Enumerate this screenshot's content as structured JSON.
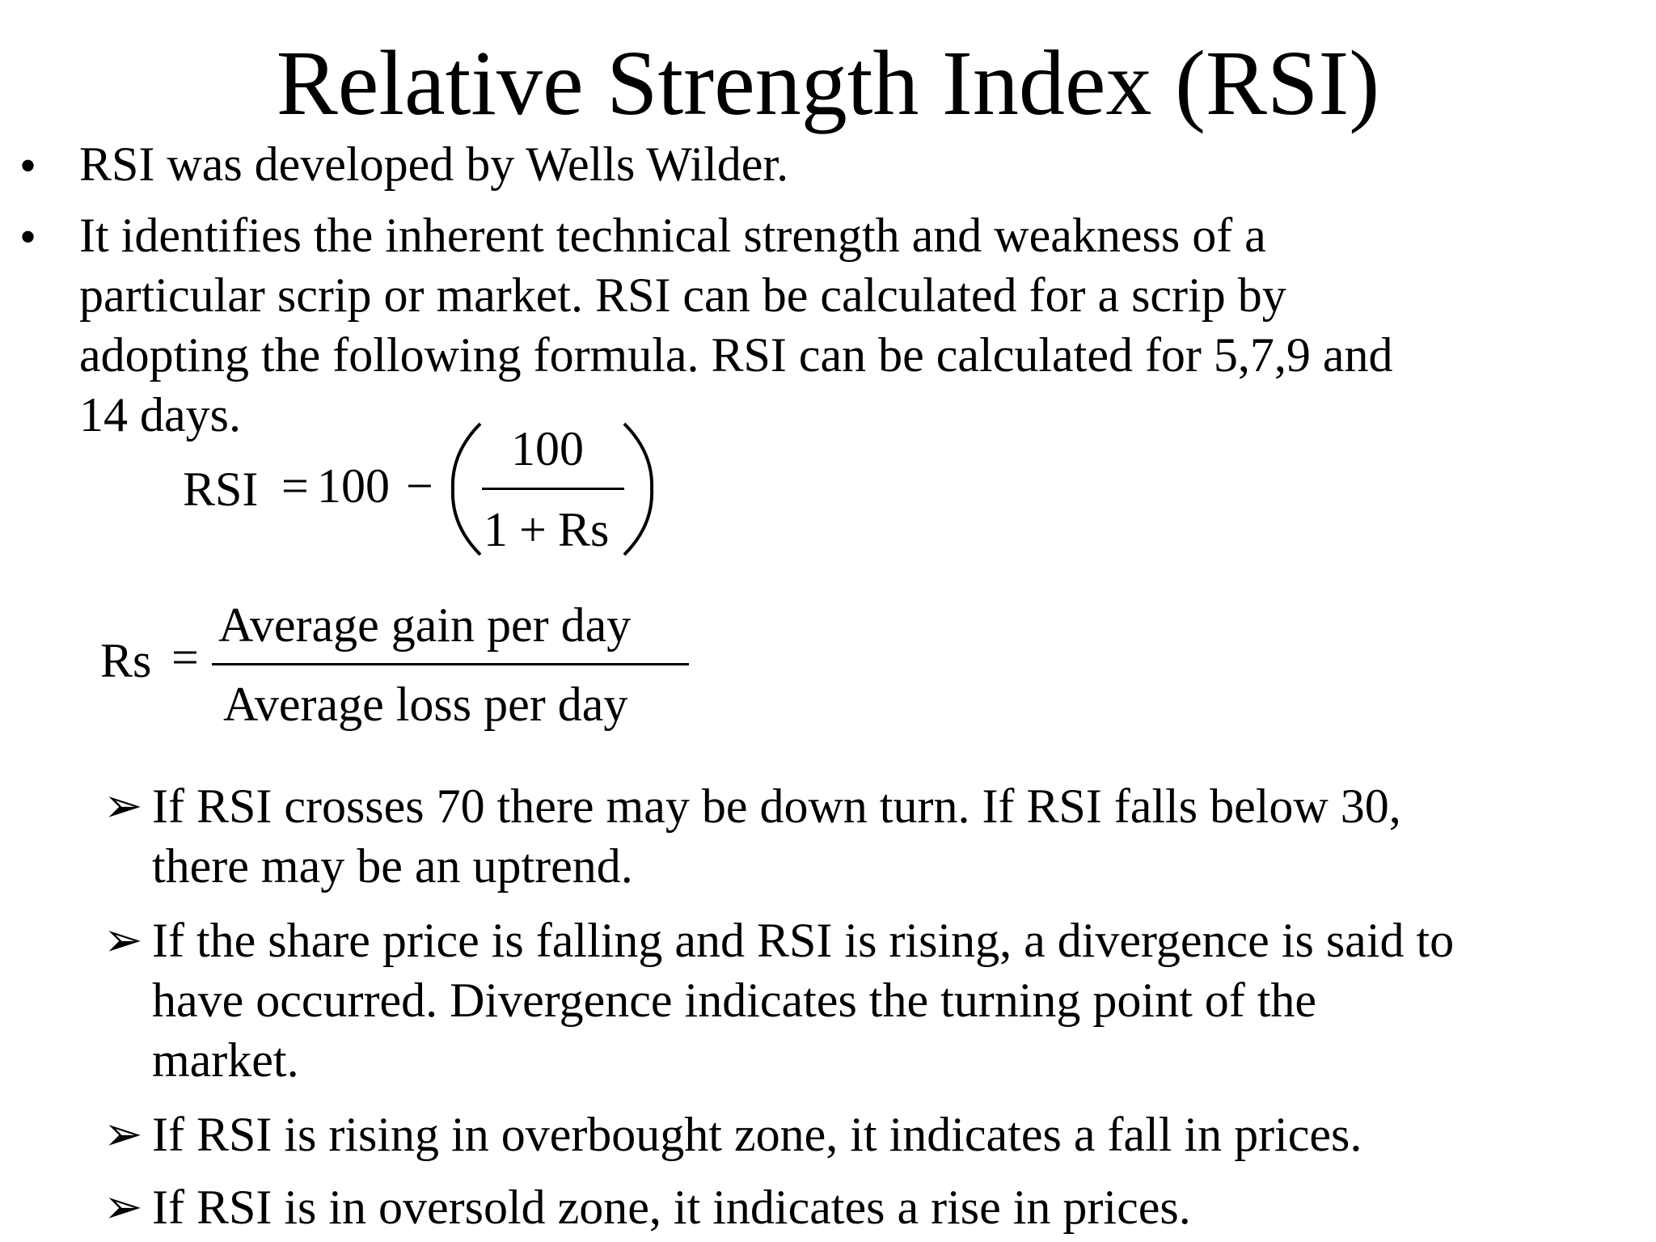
{
  "title": "Relative Strength Index (RSI)",
  "bullets": [
    {
      "marker": "•",
      "lines": [
        "RSI was developed by Wells Wilder."
      ]
    },
    {
      "marker": "•",
      "lines": [
        "It identifies the inherent technical strength and weakness of a",
        "particular scrip or market. RSI can be calculated for a scrip by",
        "adopting the following formula. RSI can be calculated for 5,7,9 and",
        "14 days."
      ]
    }
  ],
  "formula_rsi": {
    "lhs": "RSI",
    "equals": "=",
    "constant": "100",
    "minus": "−",
    "numerator": "100",
    "denominator_one": "1",
    "denominator_plus": "+",
    "denominator_rs": "Rs"
  },
  "formula_rs": {
    "lhs": "Rs",
    "equals": "=",
    "numerator": "Average gain per day",
    "denominator": "Average loss per day"
  },
  "sub_bullets": [
    {
      "marker": "➢",
      "lines": [
        "If RSI crosses 70 there may be down turn. If RSI falls below 30,",
        "there may be an uptrend."
      ]
    },
    {
      "marker": "➢",
      "lines": [
        "If the share price is falling and RSI is rising, a divergence is said to",
        "have occurred. Divergence indicates the turning point of the",
        "market."
      ]
    },
    {
      "marker": "➢",
      "lines": [
        "If RSI is rising in overbought zone, it indicates a fall in prices."
      ]
    },
    {
      "marker": "➢",
      "lines": [
        "If RSI is in oversold zone, it indicates a rise in prices."
      ]
    }
  ]
}
